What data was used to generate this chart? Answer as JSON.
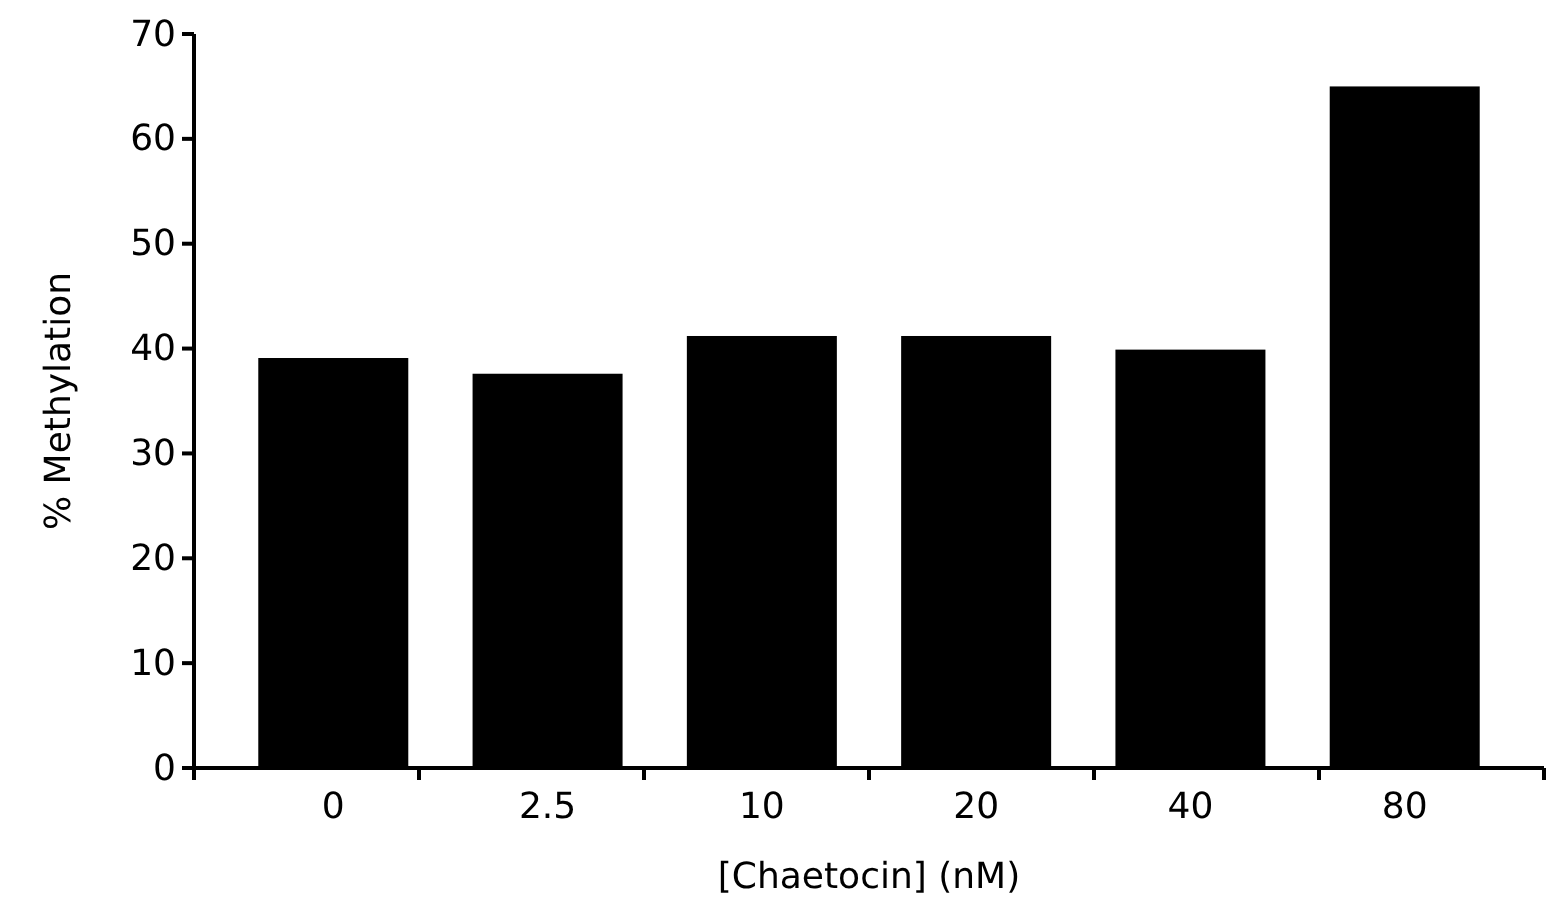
{
  "chart_data": {
    "type": "bar",
    "xlabel": "[Chaetocin] (nM)",
    "ylabel": "% Methylation",
    "categories": [
      "0",
      "2.5",
      "10",
      "20",
      "40",
      "80"
    ],
    "values": [
      39.1,
      37.6,
      41.2,
      41.2,
      39.9,
      65.0
    ],
    "color": "#000000",
    "ylim": [
      0,
      70
    ],
    "yticks": [
      0,
      10,
      20,
      30,
      40,
      50,
      60,
      70
    ],
    "grid": false
  }
}
